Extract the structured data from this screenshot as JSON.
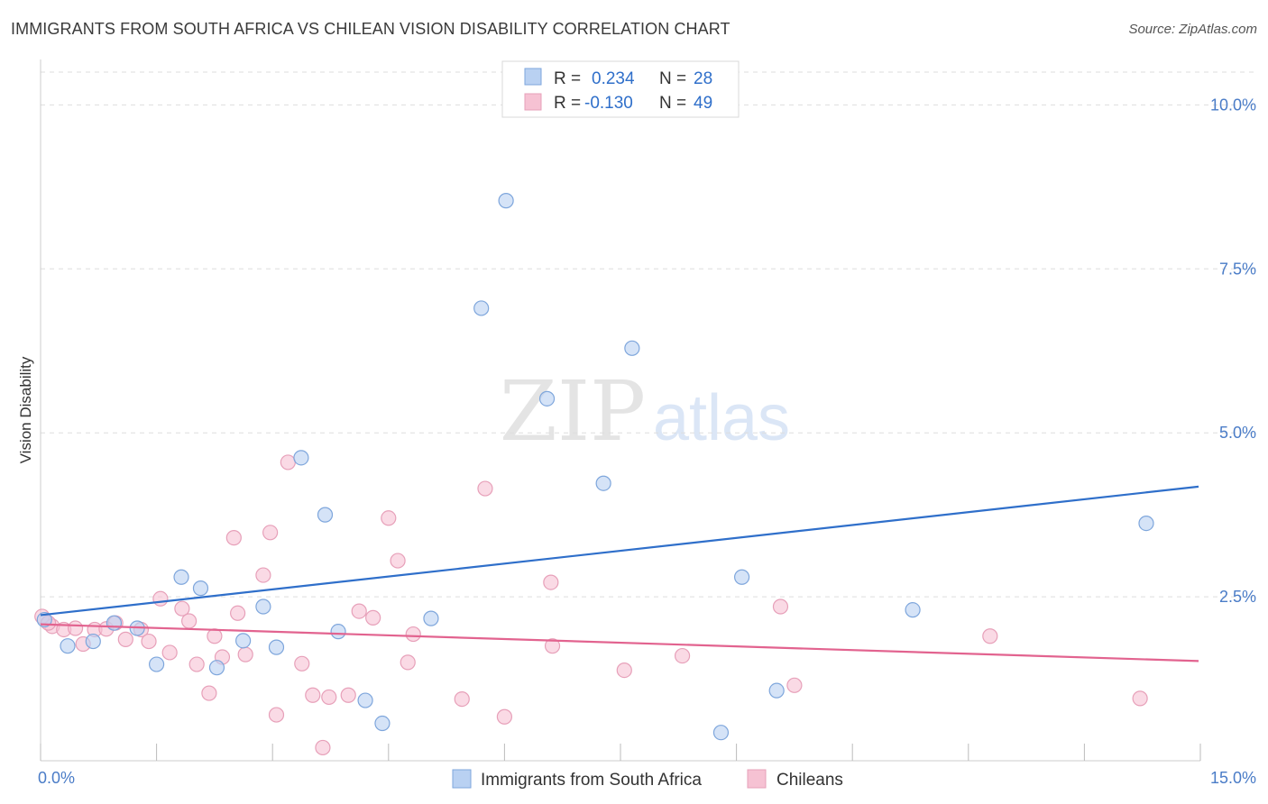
{
  "title": "IMMIGRANTS FROM SOUTH AFRICA VS CHILEAN VISION DISABILITY CORRELATION CHART",
  "source": "Source: ZipAtlas.com",
  "watermark": {
    "zip": "ZIP",
    "atlas": "atlas"
  },
  "colors": {
    "blue": "#2f6fca",
    "blue_fill": "#b9d1f2",
    "pink": "#e2638f",
    "pink_fill": "#f6c2d3",
    "grid": "#dddddd",
    "tick": "#4a7cc7"
  },
  "legend": {
    "r_label": "R =",
    "n_label": "N =",
    "rows": [
      {
        "r": "0.234",
        "n": "28"
      },
      {
        "r": "-0.130",
        "n": "49"
      }
    ]
  },
  "chart_data": {
    "type": "scatter",
    "title": "IMMIGRANTS FROM SOUTH AFRICA VS CHILEAN VISION DISABILITY CORRELATION CHART",
    "xlabel": "",
    "ylabel": "Vision Disability",
    "xlim": [
      0,
      15
    ],
    "ylim": [
      0,
      10.5
    ],
    "x_tick_labels": [
      "0.0%",
      "15.0%"
    ],
    "y_ticks": [
      {
        "value": 10,
        "label": "10.0%"
      },
      {
        "value": 7.5,
        "label": "7.5%"
      },
      {
        "value": 5,
        "label": "5.0%"
      },
      {
        "value": 2.5,
        "label": "2.5%"
      }
    ],
    "grid": true,
    "legend_position": "top-center",
    "series": [
      {
        "name": "Immigrants from South Africa",
        "color": "#2f6fca",
        "points": [
          [
            0.05,
            2.15
          ],
          [
            0.35,
            1.75
          ],
          [
            0.68,
            1.82
          ],
          [
            0.95,
            2.1
          ],
          [
            1.25,
            2.02
          ],
          [
            1.5,
            1.47
          ],
          [
            1.82,
            2.8
          ],
          [
            2.07,
            2.63
          ],
          [
            2.28,
            1.42
          ],
          [
            2.62,
            1.83
          ],
          [
            2.88,
            2.35
          ],
          [
            3.05,
            1.73
          ],
          [
            3.37,
            4.62
          ],
          [
            3.68,
            3.75
          ],
          [
            3.85,
            1.97
          ],
          [
            4.2,
            0.92
          ],
          [
            4.42,
            0.57
          ],
          [
            5.05,
            2.17
          ],
          [
            5.7,
            6.9
          ],
          [
            6.02,
            8.54
          ],
          [
            6.55,
            5.52
          ],
          [
            7.28,
            4.23
          ],
          [
            7.65,
            6.29
          ],
          [
            8.8,
            0.43
          ],
          [
            9.07,
            2.8
          ],
          [
            9.52,
            1.07
          ],
          [
            11.28,
            2.3
          ],
          [
            14.3,
            3.62
          ]
        ],
        "trend": [
          [
            0,
            2.22
          ],
          [
            15,
            4.18
          ]
        ]
      },
      {
        "name": "Chileans",
        "color": "#e2638f",
        "points": [
          [
            0.02,
            2.2
          ],
          [
            0.15,
            2.05
          ],
          [
            0.3,
            2.0
          ],
          [
            0.45,
            2.02
          ],
          [
            0.55,
            1.78
          ],
          [
            0.7,
            2.0
          ],
          [
            0.85,
            2.01
          ],
          [
            0.97,
            2.1
          ],
          [
            1.1,
            1.85
          ],
          [
            1.3,
            2.0
          ],
          [
            1.4,
            1.82
          ],
          [
            1.55,
            2.47
          ],
          [
            1.67,
            1.65
          ],
          [
            1.83,
            2.32
          ],
          [
            1.92,
            2.13
          ],
          [
            2.02,
            1.47
          ],
          [
            2.18,
            1.03
          ],
          [
            2.25,
            1.9
          ],
          [
            2.35,
            1.58
          ],
          [
            2.5,
            3.4
          ],
          [
            2.55,
            2.25
          ],
          [
            2.65,
            1.62
          ],
          [
            2.88,
            2.83
          ],
          [
            2.97,
            3.48
          ],
          [
            3.05,
            0.7
          ],
          [
            3.2,
            4.55
          ],
          [
            3.38,
            1.48
          ],
          [
            3.52,
            1.0
          ],
          [
            3.65,
            0.2
          ],
          [
            3.73,
            0.97
          ],
          [
            3.98,
            1.0
          ],
          [
            4.12,
            2.28
          ],
          [
            4.3,
            2.18
          ],
          [
            4.5,
            3.7
          ],
          [
            4.62,
            3.05
          ],
          [
            4.75,
            1.5
          ],
          [
            4.82,
            1.93
          ],
          [
            5.45,
            0.94
          ],
          [
            5.75,
            4.15
          ],
          [
            6.0,
            0.67
          ],
          [
            6.6,
            2.72
          ],
          [
            6.62,
            1.75
          ],
          [
            7.55,
            1.38
          ],
          [
            8.3,
            1.6
          ],
          [
            9.57,
            2.35
          ],
          [
            9.75,
            1.15
          ],
          [
            12.28,
            1.9
          ],
          [
            14.22,
            0.95
          ],
          [
            0.1,
            2.1
          ]
        ],
        "trend": [
          [
            0,
            2.08
          ],
          [
            15,
            1.52
          ]
        ]
      }
    ]
  }
}
